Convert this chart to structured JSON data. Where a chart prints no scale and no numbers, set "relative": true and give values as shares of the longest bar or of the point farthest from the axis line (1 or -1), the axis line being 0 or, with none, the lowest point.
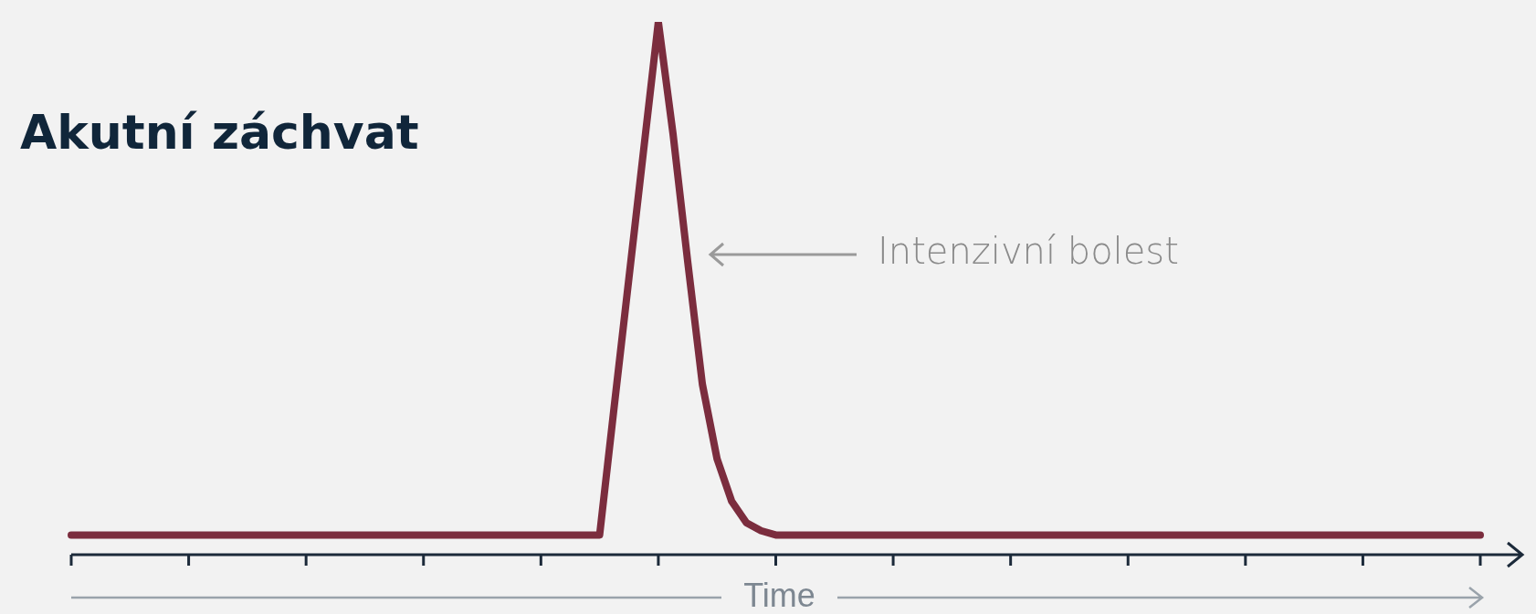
{
  "chart_data": {
    "type": "line",
    "title": "Akutní záchvat",
    "xlabel": "Time",
    "relative": true,
    "categories": [
      null,
      null,
      null,
      null,
      null,
      null,
      null,
      null,
      null,
      null,
      null,
      null,
      null,
      null,
      null,
      null,
      null,
      null,
      null,
      null,
      null,
      null,
      null,
      null,
      null,
      null,
      null,
      null,
      null,
      null,
      null,
      null,
      null,
      null,
      null,
      null,
      null,
      null,
      null,
      null,
      null,
      null,
      null,
      null,
      null,
      null,
      null,
      null,
      null,
      null,
      null,
      null,
      null,
      null,
      null,
      null,
      null,
      null,
      null,
      null,
      null,
      null,
      null,
      null,
      null,
      null,
      null,
      null,
      null,
      null,
      null,
      null,
      null,
      null,
      null,
      null,
      null,
      null,
      null,
      null,
      null,
      null,
      null,
      null,
      null,
      null,
      null,
      null,
      null,
      null,
      null,
      null,
      null,
      null,
      null,
      null,
      null
    ],
    "series": [
      {
        "color": "#7b2d3e",
        "values": [
          0.037,
          0.037,
          0.037,
          0.037,
          0.037,
          0.037,
          0.037,
          0.037,
          0.037,
          0.037,
          0.037,
          0.037,
          0.037,
          0.037,
          0.037,
          0.037,
          0.037,
          0.037,
          0.037,
          0.037,
          0.037,
          0.037,
          0.037,
          0.037,
          0.037,
          0.037,
          0.037,
          0.037,
          0.037,
          0.037,
          0.037,
          0.037,
          0.037,
          0.037,
          0.037,
          0.037,
          0.037,
          0.28,
          0.52,
          0.76,
          1,
          0.79,
          0.55,
          0.32,
          0.18,
          0.1,
          0.06,
          0.045,
          0.037,
          0.037,
          0.037,
          0.037,
          0.037,
          0.037,
          0.037,
          0.037,
          0.037,
          0.037,
          0.037,
          0.037,
          0.037,
          0.037,
          0.037,
          0.037,
          0.037,
          0.037,
          0.037,
          0.037,
          0.037,
          0.037,
          0.037,
          0.037,
          0.037,
          0.037,
          0.037,
          0.037,
          0.037,
          0.037,
          0.037,
          0.037,
          0.037,
          0.037,
          0.037,
          0.037,
          0.037,
          0.037,
          0.037,
          0.037,
          0.037,
          0.037,
          0.037,
          0.037,
          0.037,
          0.037,
          0.037,
          0.037,
          0.037
        ]
      }
    ],
    "grid": false,
    "legend": false,
    "marker": "none",
    "line_style": "solid",
    "annotations": [
      "Intenzivní bolest"
    ]
  }
}
